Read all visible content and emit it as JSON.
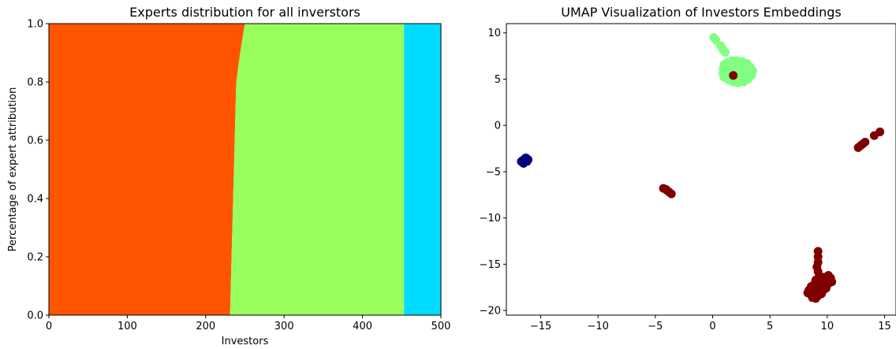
{
  "chart_data": [
    {
      "type": "area",
      "title": "Experts distribution for all inverstors",
      "xlabel": "Investors",
      "ylabel": "Percentage of expert attribution",
      "xlim": [
        0,
        500
      ],
      "ylim": [
        0,
        1
      ],
      "x_ticks": [
        "0",
        "100",
        "200",
        "300",
        "400",
        "500"
      ],
      "y_ticks": [
        "0.0",
        "0.2",
        "0.4",
        "0.6",
        "0.8",
        "1.0"
      ],
      "grid": false,
      "colors": [
        "#ff5500",
        "#99ff5e",
        "#00dcff"
      ],
      "boundary_1": [
        [
          0,
          231
        ],
        [
          0.1,
          232
        ],
        [
          0.2,
          233
        ],
        [
          0.3,
          234
        ],
        [
          0.4,
          235
        ],
        [
          0.5,
          236
        ],
        [
          0.6,
          237
        ],
        [
          0.7,
          238
        ],
        [
          0.8,
          239
        ],
        [
          0.9,
          244
        ],
        [
          1.0,
          250
        ]
      ],
      "boundary_2": [
        [
          0,
          453
        ],
        [
          1.0,
          453
        ]
      ]
    },
    {
      "type": "scatter",
      "title": "UMAP Visualization of Investors Embeddings",
      "xlim": [
        -18,
        16
      ],
      "ylim": [
        -20.5,
        11
      ],
      "x_ticks": [
        "−15",
        "−10",
        "−5",
        "0",
        "5",
        "10",
        "15"
      ],
      "y_ticks": [
        "−20",
        "−15",
        "−10",
        "−5",
        "0",
        "5",
        "10"
      ],
      "grid": false,
      "colors": {
        "dark_red": "#800000",
        "light_green": "#80ff80",
        "navy": "#00007f"
      },
      "clusters": [
        {
          "color": "dark_red",
          "points": [
            [
              -4.3,
              -6.8
            ],
            [
              -4.0,
              -7.0
            ],
            [
              -3.8,
              -7.2
            ],
            [
              -3.6,
              -7.4
            ],
            [
              -4.1,
              -6.9
            ]
          ]
        },
        {
          "color": "dark_red",
          "points": [
            [
              12.7,
              -2.4
            ],
            [
              12.9,
              -2.2
            ],
            [
              13.1,
              -2.0
            ],
            [
              13.3,
              -1.8
            ],
            [
              14.1,
              -1.1
            ],
            [
              14.6,
              -0.7
            ]
          ]
        },
        {
          "color": "dark_red",
          "points": [
            [
              9.2,
              -13.6
            ],
            [
              9.2,
              -14.2
            ],
            [
              9.2,
              -14.8
            ],
            [
              9.1,
              -15.3
            ],
            [
              9.2,
              -15.8
            ],
            [
              9.3,
              -16.3
            ],
            [
              9.0,
              -16.7
            ],
            [
              9.5,
              -16.6
            ],
            [
              10.1,
              -16.2
            ],
            [
              10.3,
              -16.5
            ],
            [
              10.4,
              -16.9
            ],
            [
              10.1,
              -17.1
            ],
            [
              9.8,
              -16.8
            ],
            [
              9.6,
              -17.3
            ],
            [
              9.9,
              -17.6
            ],
            [
              9.4,
              -17.8
            ],
            [
              8.6,
              -17.4
            ],
            [
              8.4,
              -17.8
            ],
            [
              8.3,
              -18.1
            ],
            [
              8.6,
              -18.3
            ],
            [
              8.9,
              -18.5
            ],
            [
              9.2,
              -18.4
            ],
            [
              9.5,
              -18.2
            ],
            [
              8.8,
              -17.9
            ],
            [
              9.1,
              -17.5
            ],
            [
              8.9,
              -17.1
            ],
            [
              9.6,
              -17.9
            ],
            [
              8.7,
              -18.6
            ],
            [
              9.0,
              -18.7
            ],
            [
              9.3,
              -17.2
            ],
            [
              10.0,
              -16.6
            ],
            [
              9.7,
              -16.4
            ]
          ]
        },
        {
          "color": "navy",
          "points": [
            [
              -16.6,
              -3.8
            ],
            [
              -16.4,
              -3.6
            ],
            [
              -16.2,
              -3.9
            ],
            [
              -16.5,
              -4.1
            ],
            [
              -16.3,
              -3.5
            ],
            [
              -16.1,
              -3.7
            ],
            [
              -16.7,
              -3.9
            ]
          ]
        },
        {
          "color": "light_green",
          "points": [
            [
              0.1,
              9.5
            ],
            [
              0.3,
              9.2
            ],
            [
              0.7,
              8.6
            ],
            [
              0.9,
              8.2
            ],
            [
              1.1,
              7.9
            ],
            [
              1.0,
              6.6
            ],
            [
              1.3,
              6.8
            ],
            [
              1.7,
              7.0
            ],
            [
              2.1,
              7.0
            ],
            [
              2.6,
              6.9
            ],
            [
              3.0,
              6.7
            ],
            [
              3.3,
              6.3
            ],
            [
              3.5,
              5.9
            ],
            [
              3.4,
              5.4
            ],
            [
              3.1,
              5.0
            ],
            [
              2.7,
              4.7
            ],
            [
              2.2,
              4.6
            ],
            [
              1.8,
              4.7
            ],
            [
              1.4,
              4.9
            ],
            [
              1.0,
              5.2
            ],
            [
              0.9,
              5.6
            ],
            [
              0.9,
              6.1
            ],
            [
              1.5,
              5.8
            ],
            [
              2.0,
              6.2
            ],
            [
              2.5,
              5.7
            ],
            [
              2.9,
              6.1
            ],
            [
              2.6,
              5.2
            ],
            [
              1.9,
              5.1
            ],
            [
              2.3,
              6.6
            ],
            [
              1.6,
              6.4
            ],
            [
              2.9,
              5.5
            ],
            [
              1.2,
              5.9
            ]
          ]
        },
        {
          "color": "dark_red",
          "points": [
            [
              1.8,
              5.4
            ]
          ]
        }
      ]
    }
  ]
}
